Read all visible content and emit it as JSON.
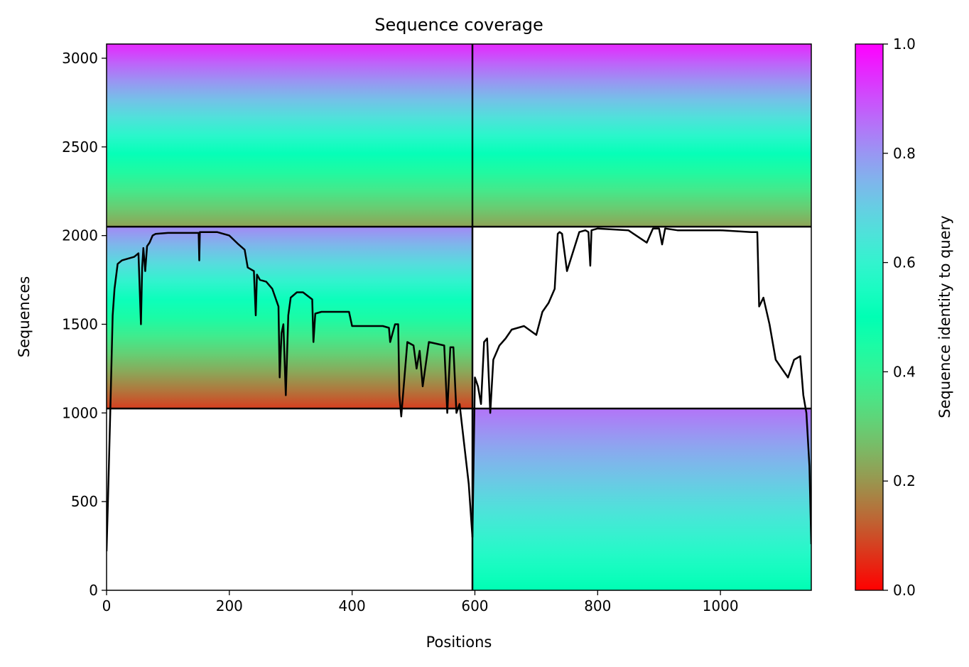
{
  "chart_data": {
    "type": "heatmap",
    "title": "Sequence coverage",
    "xlabel": "Positions",
    "ylabel": "Sequences",
    "xlim": [
      0,
      1148
    ],
    "ylim": [
      0,
      3080
    ],
    "x_ticks": [
      0,
      200,
      400,
      600,
      800,
      1000
    ],
    "y_ticks": [
      0,
      500,
      1000,
      1500,
      2000,
      2500,
      3000
    ],
    "colorbar": {
      "label": "Sequence identity to query",
      "range": [
        0.0,
        1.0
      ],
      "ticks": [
        "0.0",
        "0.2",
        "0.4",
        "0.6",
        "0.8",
        "1.0"
      ],
      "colormap": "rainbow_r"
    },
    "boundaries": {
      "vertical": [
        596
      ],
      "horizontal": [
        1025,
        2050
      ]
    },
    "coverage_blocks": [
      {
        "x": [
          0,
          596
        ],
        "y": [
          2050,
          3080
        ],
        "identity_bottom": 0.22,
        "identity_top": 0.95
      },
      {
        "x": [
          596,
          1148
        ],
        "y": [
          2050,
          3080
        ],
        "identity_bottom": 0.22,
        "identity_top": 0.95
      },
      {
        "x": [
          0,
          596
        ],
        "y": [
          1025,
          2050
        ],
        "identity_bottom": 0.08,
        "identity_top": 0.82
      },
      {
        "x": [
          596,
          1148
        ],
        "y": [
          1025,
          2050
        ],
        "identity_bottom": null,
        "identity_top": null
      },
      {
        "x": [
          0,
          596
        ],
        "y": [
          0,
          1025
        ],
        "identity_bottom": null,
        "identity_top": null
      },
      {
        "x": [
          596,
          1148
        ],
        "y": [
          0,
          1025
        ],
        "identity_bottom": 0.5,
        "identity_top": 0.85
      }
    ],
    "coverage_line": {
      "x": [
        0,
        3,
        6,
        10,
        13,
        18,
        25,
        35,
        45,
        52,
        56,
        58,
        60,
        63,
        66,
        70,
        75,
        80,
        100,
        150,
        151,
        152,
        180,
        200,
        215,
        225,
        230,
        240,
        243,
        245,
        250,
        260,
        270,
        280,
        282,
        285,
        288,
        292,
        296,
        300,
        310,
        320,
        335,
        337,
        340,
        350,
        380,
        395,
        400,
        450,
        460,
        462,
        470,
        475,
        477,
        480,
        490,
        500,
        505,
        510,
        515,
        525,
        550,
        555,
        560,
        565,
        570,
        575,
        580,
        590,
        596,
        600,
        605,
        610,
        615,
        620,
        625,
        630,
        640,
        650,
        660,
        680,
        700,
        710,
        720,
        730,
        735,
        738,
        742,
        750,
        770,
        780,
        785,
        788,
        790,
        800,
        850,
        880,
        890,
        900,
        905,
        910,
        930,
        1000,
        1050,
        1060,
        1063,
        1070,
        1080,
        1090,
        1100,
        1110,
        1120,
        1130,
        1135,
        1140,
        1145,
        1148
      ],
      "y": [
        220,
        600,
        1000,
        1550,
        1700,
        1840,
        1860,
        1870,
        1880,
        1900,
        1500,
        1820,
        1930,
        1800,
        1940,
        1960,
        2000,
        2010,
        2015,
        2015,
        1860,
        2020,
        2020,
        2000,
        1950,
        1920,
        1820,
        1800,
        1550,
        1780,
        1750,
        1740,
        1700,
        1600,
        1200,
        1450,
        1500,
        1100,
        1550,
        1650,
        1680,
        1680,
        1640,
        1400,
        1560,
        1570,
        1570,
        1570,
        1490,
        1490,
        1480,
        1400,
        1500,
        1500,
        1100,
        980,
        1400,
        1380,
        1250,
        1350,
        1150,
        1400,
        1380,
        1000,
        1370,
        1370,
        1000,
        1050,
        900,
        600,
        300,
        1200,
        1150,
        1050,
        1400,
        1420,
        1000,
        1300,
        1380,
        1420,
        1470,
        1490,
        1440,
        1570,
        1620,
        1700,
        2010,
        2020,
        2010,
        1800,
        2020,
        2030,
        2020,
        1830,
        2030,
        2040,
        2030,
        1960,
        2040,
        2040,
        1950,
        2040,
        2030,
        2030,
        2020,
        2020,
        1600,
        1650,
        1500,
        1300,
        1250,
        1200,
        1300,
        1320,
        1100,
        1000,
        700,
        260
      ]
    }
  }
}
